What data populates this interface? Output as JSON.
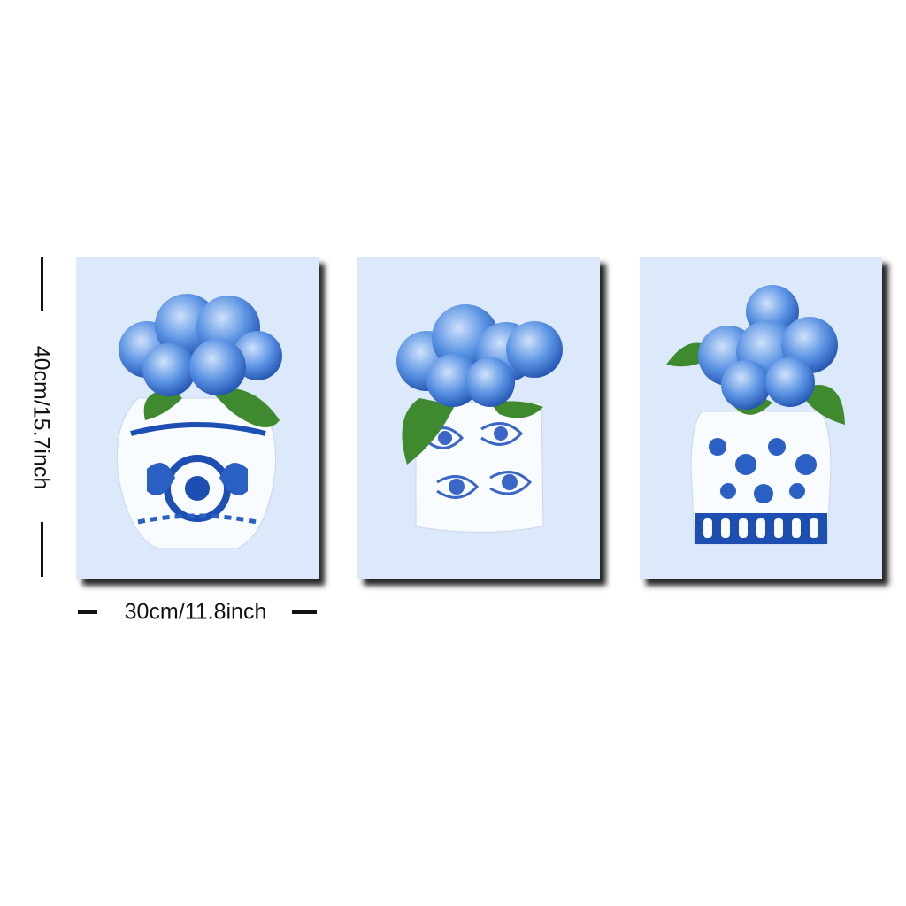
{
  "dimensions": {
    "height_label": "40cm/15.7inch",
    "width_label": "30cm/11.8inch"
  },
  "colors": {
    "panel_background": "#dbe9fb",
    "porcelain_blue": "#1d4fb3",
    "hydrangea_blue": "#4a86de",
    "leaf_green": "#3f8a2e"
  },
  "prints": [
    {
      "subject": "hydrangeas in blue-and-white porcelain vase"
    },
    {
      "subject": "hydrangeas in blue-and-white floral pot"
    },
    {
      "subject": "hydrangeas in blue-and-white ginger jar"
    }
  ]
}
